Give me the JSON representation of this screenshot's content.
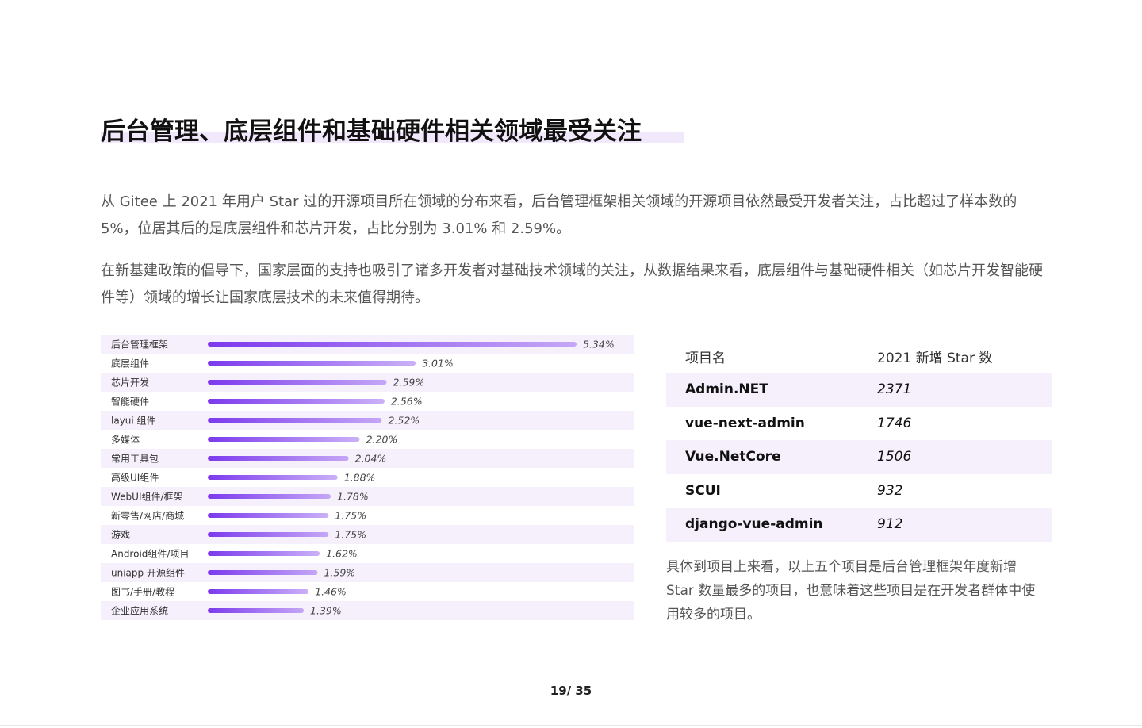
{
  "header": {
    "title": "后台管理、底层组件和基础硬件相关领域最受关注"
  },
  "paragraphs": [
    "从 Gitee 上 2021 年用户 Star 过的开源项目所在领域的分布来看，后台管理框架相关领域的开源项目依然最受开发者关注，占比超过了样本数的 5%，位居其后的是底层组件和芯片开发，占比分别为 3.01% 和 2.59%。",
    "在新基建政策的倡导下，国家层面的支持也吸引了诸多开发者对基础技术领域的关注，从数据结果来看，底层组件与基础硬件相关（如芯片开发智能硬件等）领域的增长让国家底层技术的未来值得期待。"
  ],
  "chart_data": {
    "type": "bar",
    "orientation": "horizontal",
    "color": "#7c3aed",
    "categories": [
      "后台管理框架",
      "底层组件",
      "芯片开发",
      "智能硬件",
      "layui 组件",
      "多媒体",
      "常用工具包",
      "高级UI组件",
      "WebUI组件/框架",
      "新零售/网店/商城",
      "游戏",
      "Android组件/项目",
      "uniapp 开源组件",
      "图书/手册/教程",
      "企业应用系统"
    ],
    "values": [
      5.34,
      3.01,
      2.59,
      2.56,
      2.52,
      2.2,
      2.04,
      1.88,
      1.78,
      1.75,
      1.75,
      1.62,
      1.59,
      1.46,
      1.39
    ],
    "value_labels": [
      "5.34%",
      "3.01%",
      "2.59%",
      "2.56%",
      "2.52%",
      "2.20%",
      "2.04%",
      "1.88%",
      "1.78%",
      "1.75%",
      "1.75%",
      "1.62%",
      "1.59%",
      "1.46%",
      "1.39%"
    ]
  },
  "table": {
    "columns": [
      "项目名",
      "2021 新增 Star 数"
    ],
    "rows": [
      [
        "Admin.NET",
        2371
      ],
      [
        "vue-next-admin",
        1746
      ],
      [
        "Vue.NetCore",
        1506
      ],
      [
        "SCUI",
        932
      ],
      [
        "django-vue-admin",
        912
      ]
    ]
  },
  "note": "具体到项目上来看，以上五个项目是后台管理框架年度新增 Star 数量最多的项目，也意味着这些项目是在开发者群体中使用较多的项目。",
  "footer": {
    "page": "19/ 35"
  }
}
